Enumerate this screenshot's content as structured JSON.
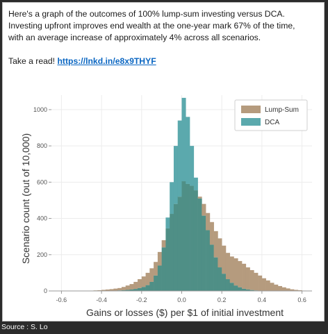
{
  "post": {
    "line1": "Here's a graph of the outcomes of 100% lump-sum investing versus DCA.",
    "line2": "Investing upfront improves end wealth at the one-year mark 67% of the time,",
    "line3": "with an average increase of approximately 4% across all scenarios.",
    "cta": "Take a read! ",
    "link": "https://lnkd.in/e8x9THYF"
  },
  "source": "Source : S. Lo",
  "colors": {
    "lump_sum": "#b59b7e",
    "dca": "#5ba9ad",
    "overlap": "#4f8f86",
    "link": "#0a66c2",
    "frame": "#2b2b2b"
  },
  "chart_data": {
    "type": "bar",
    "xlabel": "Gains or losses ($) per $1 of initial investment",
    "ylabel": "Scenario count (out of 10,000)",
    "xlim": [
      -0.65,
      0.65
    ],
    "ylim": [
      0,
      1080
    ],
    "xticks": [
      "-0.6",
      "-0.4",
      "-0.2",
      "0.0",
      "0.2",
      "0.4",
      "0.6"
    ],
    "xtick_values": [
      -0.6,
      -0.4,
      -0.2,
      0.0,
      0.2,
      0.4,
      0.6
    ],
    "yticks": [
      "0",
      "200",
      "400",
      "600",
      "800",
      "1000"
    ],
    "ytick_values": [
      0,
      200,
      400,
      600,
      800,
      1000
    ],
    "bin_width": 0.02,
    "bin_starts": [
      -0.46,
      -0.44,
      -0.42,
      -0.4,
      -0.38,
      -0.36,
      -0.34,
      -0.32,
      -0.3,
      -0.28,
      -0.26,
      -0.24,
      -0.22,
      -0.2,
      -0.18,
      -0.16,
      -0.14,
      -0.12,
      -0.1,
      -0.08,
      -0.06,
      -0.04,
      -0.02,
      0.0,
      0.02,
      0.04,
      0.06,
      0.08,
      0.1,
      0.12,
      0.14,
      0.16,
      0.18,
      0.2,
      0.22,
      0.24,
      0.26,
      0.28,
      0.3,
      0.32,
      0.34,
      0.36,
      0.38,
      0.4,
      0.42,
      0.44,
      0.46,
      0.48,
      0.5,
      0.52,
      0.54,
      0.56,
      0.58,
      0.6
    ],
    "legend_position": "top-right",
    "series": [
      {
        "name": "Lump-Sum",
        "values": [
          2,
          3,
          4,
          6,
          8,
          10,
          13,
          16,
          22,
          30,
          38,
          50,
          65,
          80,
          100,
          125,
          160,
          215,
          280,
          345,
          425,
          480,
          520,
          605,
          590,
          580,
          555,
          520,
          480,
          430,
          380,
          330,
          290,
          250,
          210,
          190,
          180,
          165,
          150,
          130,
          115,
          100,
          85,
          70,
          58,
          45,
          35,
          27,
          20,
          14,
          9,
          6,
          4,
          2
        ]
      },
      {
        "name": "DCA",
        "values": [
          0,
          0,
          0,
          0,
          1,
          1,
          2,
          3,
          4,
          6,
          8,
          11,
          16,
          22,
          32,
          50,
          85,
          140,
          240,
          405,
          600,
          800,
          940,
          1065,
          960,
          800,
          625,
          510,
          415,
          335,
          255,
          185,
          130,
          95,
          65,
          45,
          30,
          20,
          12,
          8,
          5,
          3,
          2,
          1,
          1,
          0,
          0,
          0,
          0,
          0,
          0,
          0,
          0,
          0
        ]
      }
    ]
  }
}
